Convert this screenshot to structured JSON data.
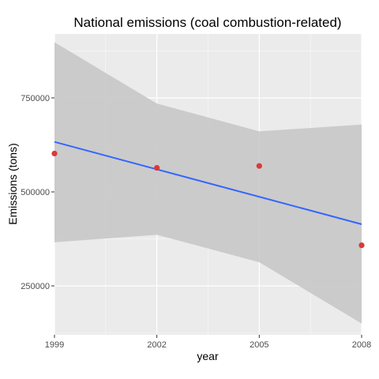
{
  "chart_data": {
    "type": "scatter",
    "title": "National emissions (coal combustion-related)",
    "xlabel": "year",
    "ylabel": "Emissions (tons)",
    "xlim": [
      1999,
      2008
    ],
    "ylim": [
      120000,
      920000
    ],
    "x_ticks": [
      1999,
      2002,
      2005,
      2008
    ],
    "x_tick_labels": [
      "1999",
      "2002",
      "2005",
      "2008"
    ],
    "y_ticks": [
      250000,
      500000,
      750000
    ],
    "y_tick_labels": [
      "250000",
      "500000",
      "750000"
    ],
    "grid": true,
    "legend": "none",
    "series": [
      {
        "type": "points",
        "x": [
          1999,
          2002,
          2005,
          2008
        ],
        "y": [
          602000,
          564000,
          569000,
          358000
        ]
      },
      {
        "type": "trend-line",
        "x": [
          1999,
          2008
        ],
        "y": [
          633000,
          414000
        ]
      },
      {
        "type": "confidence-band",
        "x": [
          1999,
          2002,
          2005,
          2008
        ],
        "lower": [
          366000,
          386000,
          313000,
          150000
        ],
        "upper": [
          898000,
          735000,
          661000,
          679000
        ]
      }
    ],
    "colors": {
      "panel": "#ebebeb",
      "grid": "#ffffff",
      "points": "#d83a3a",
      "line": "#3366ff",
      "band": "#c8c8c8"
    }
  }
}
